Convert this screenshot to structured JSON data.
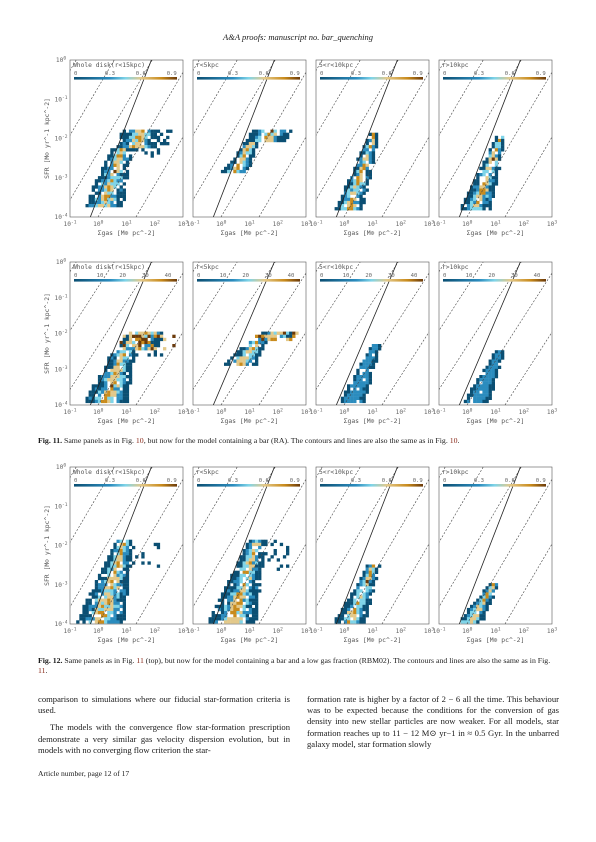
{
  "running_head": "A&A proofs: manuscript no. bar_quenching",
  "fig11": {
    "caption_label": "Fig. 11.",
    "caption_pre": " Same panels as in Fig. ",
    "caption_ref1": "10",
    "caption_mid": ", but now for the model containing a bar (RA). The contours and lines are also the same as in Fig. ",
    "caption_ref2": "10",
    "caption_end": "."
  },
  "fig12": {
    "caption_label": "Fig. 12.",
    "caption_pre": " Same panels as in Fig. ",
    "caption_ref1": "11",
    "caption_mid": " (top), but now for the model containing a bar and a low gas fraction (RBM02). The contours and lines are also the same as in Fig. ",
    "caption_ref2": "11",
    "caption_end": "."
  },
  "panel_titles": [
    "Whole disk(r<15kpc)",
    "r<5kpc",
    "5<r<10kpc",
    "r>10kpc"
  ],
  "colorbar_ticks_fraction": [
    "0",
    "0.3",
    "0.6",
    "0.9"
  ],
  "colorbar_ticks_sigma": [
    "0",
    "10",
    "20",
    "30",
    "40"
  ],
  "x_tick_labels": [
    "10^-1",
    "10^0",
    "10^1",
    "10^2",
    "10^3"
  ],
  "x_tick_labels_last": [
    "10^-1",
    "10^0",
    "10^1",
    "10^2",
    "10^3"
  ],
  "y_tick_labels": [
    "10^0",
    "10^-1",
    "10^-2",
    "10^-3",
    "10^-4"
  ],
  "xlabel": "Σgas [M⊙ pc^-2]",
  "ylabel": "SFR [M⊙ yr^-1 kpc^-2]",
  "colors": {
    "bg_blue": "#0b4f73",
    "mid_blue": "#2b8cbe",
    "cyan": "#7fd4e8",
    "sand": "#e3c98a",
    "gold": "#c98b1c",
    "brown": "#6b3a0a",
    "ref_red": "#8a2a1a"
  },
  "body": {
    "left_p1": "comparison to simulations where our fiducial star-formation criteria is used.",
    "left_p2": "The models with the convergence flow star-formation prescription demonstrate a very similar gas velocity dispersion evolution, but in models with no converging flow criterion the star-",
    "right_p1": "formation rate is higher by a factor of 2 − 6 all the time. This behaviour was to be expected because the conditions for the conversion of gas density into new stellar particles are now weaker. For all models, star formation reaches up to 11 − 12 M⊙ yr−1 in ≈ 0.5 Gyr. In the unbarred galaxy model, star formation slowly"
  },
  "footer": "Article number, page 12 of 17"
}
